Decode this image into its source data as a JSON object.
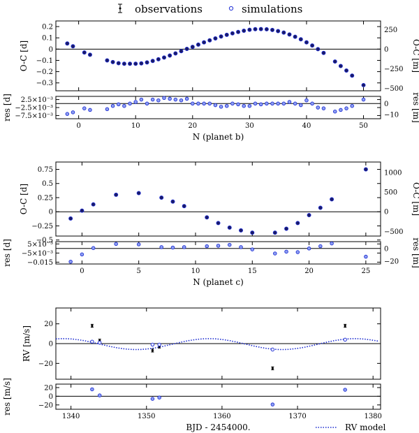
{
  "legend": {
    "observations": "observations",
    "simulations": "simulations",
    "rv_model": "RV model"
  },
  "colors": {
    "observations": "#000000",
    "simulations": "#1f2fd6",
    "sim_fill": "#8fa0f0",
    "model": "#1a2ad0"
  },
  "chart_data": [
    {
      "id": "b_oc",
      "type": "scatter",
      "ylabel": "O-C [d]",
      "ylabel_right": "O-C [m]",
      "ylim": [
        -0.37,
        0.25
      ],
      "yticks": [
        0.2,
        0.1,
        0,
        -0.1,
        -0.2,
        -0.3
      ],
      "ytick_labels": [
        "0.2",
        "0.1",
        "0",
        "−0.1",
        "−0.2",
        "−0.3"
      ],
      "yticks_right": [
        250,
        0,
        -250,
        -500
      ],
      "ytick_labels_right": [
        "250",
        "0",
        "−250",
        "−500"
      ],
      "right_scale_per_unit": 1440,
      "zero_line": true,
      "x": [
        -2,
        -1,
        1,
        2,
        5,
        6,
        7,
        8,
        9,
        10,
        11,
        12,
        13,
        14,
        15,
        16,
        17,
        18,
        19,
        20,
        21,
        22,
        23,
        24,
        25,
        26,
        27,
        28,
        29,
        30,
        31,
        32,
        33,
        34,
        35,
        36,
        37,
        38,
        39,
        40,
        41,
        42,
        43,
        45,
        46,
        47,
        48,
        50
      ],
      "y": [
        0.05,
        0.025,
        -0.03,
        -0.05,
        -0.1,
        -0.115,
        -0.125,
        -0.13,
        -0.13,
        -0.13,
        -0.127,
        -0.118,
        -0.105,
        -0.09,
        -0.075,
        -0.057,
        -0.038,
        -0.018,
        0.002,
        0.02,
        0.04,
        0.06,
        0.078,
        0.095,
        0.112,
        0.127,
        0.14,
        0.152,
        0.163,
        0.172,
        0.177,
        0.178,
        0.176,
        0.17,
        0.16,
        0.147,
        0.13,
        0.11,
        0.087,
        0.06,
        0.032,
        0.0,
        -0.034,
        -0.11,
        -0.15,
        -0.19,
        -0.235,
        -0.32
      ]
    },
    {
      "id": "b_res",
      "type": "scatter",
      "xlabel": "N (planet b)",
      "ylabel": "res [d]",
      "ylabel_right": "res [m]",
      "ylim": [
        -0.0095,
        0.0045
      ],
      "yticks": [
        0.0025,
        -0.0025,
        -0.0075
      ],
      "ytick_labels": [
        "2.5×10⁻³",
        "−2.5×10⁻³",
        "−7.5×10⁻³"
      ],
      "yticks_right": [
        0,
        -10
      ],
      "ytick_labels_right": [
        "0",
        "−10"
      ],
      "right_scale_per_unit": 1440,
      "zero_line": true,
      "xlim": [
        -4,
        53
      ],
      "xticks": [
        0,
        10,
        20,
        30,
        40,
        50
      ],
      "xtick_labels": [
        "0",
        "10",
        "20",
        "30",
        "40",
        "50"
      ],
      "x": [
        -2,
        -1,
        1,
        2,
        5,
        6,
        7,
        8,
        9,
        10,
        11,
        12,
        13,
        14,
        15,
        16,
        17,
        18,
        19,
        20,
        21,
        22,
        23,
        24,
        25,
        26,
        27,
        28,
        29,
        30,
        31,
        32,
        33,
        34,
        35,
        36,
        37,
        38,
        39,
        40,
        41,
        42,
        43,
        45,
        46,
        47,
        48,
        50
      ],
      "y": [
        -0.0065,
        -0.0055,
        -0.003,
        -0.004,
        -0.0035,
        -0.0015,
        -0.0005,
        -0.0015,
        0.0,
        0.001,
        0.0025,
        0.0,
        0.0025,
        0.002,
        0.0035,
        0.003,
        0.0025,
        0.002,
        0.003,
        0.0,
        0.0,
        0.0,
        0.0,
        -0.001,
        -0.002,
        -0.0015,
        0.0,
        -0.0005,
        -0.0015,
        -0.0015,
        0.0,
        -0.0005,
        0.0,
        0.0,
        0.0,
        0.0,
        0.001,
        0.0,
        -0.001,
        0.002,
        0.0,
        -0.0025,
        -0.003,
        -0.005,
        -0.004,
        -0.003,
        -0.0015,
        0.0025
      ]
    },
    {
      "id": "c_oc",
      "type": "scatter",
      "ylabel": "O-C [d]",
      "ylabel_right": "O-C [m]",
      "ylim": [
        -0.43,
        0.88
      ],
      "yticks": [
        0.75,
        0.5,
        0.25,
        0,
        -0.25,
        -0.5
      ],
      "ytick_labels": [
        "0.75",
        "0.5",
        "0.25",
        "0",
        "−0.25",
        "−0.5"
      ],
      "yticks_right": [
        1000,
        500,
        0,
        -500
      ],
      "ytick_labels_right": [
        "1000",
        "500",
        "0",
        "−500"
      ],
      "right_scale_per_unit": 1440,
      "zero_line": true,
      "x": [
        -1,
        0,
        1,
        3,
        5,
        7,
        8,
        9,
        11,
        12,
        13,
        14,
        15,
        17,
        18,
        19,
        20,
        21,
        22,
        25
      ],
      "y": [
        -0.12,
        0.02,
        0.13,
        0.3,
        0.33,
        0.25,
        0.18,
        0.1,
        -0.1,
        -0.2,
        -0.28,
        -0.33,
        -0.37,
        -0.37,
        -0.3,
        -0.2,
        -0.06,
        0.07,
        0.22,
        0.75
      ]
    },
    {
      "id": "c_res",
      "type": "scatter",
      "xlabel": "N (planet c)",
      "ylabel": "res [d]",
      "ylabel_right": "res [m]",
      "ylim": [
        -0.017,
        0.0075
      ],
      "yticks": [
        0.005,
        -0.005,
        -0.015
      ],
      "ytick_labels": [
        "5×10⁻³",
        "−5×10⁻³",
        "−0.015"
      ],
      "yticks_right": [
        0,
        -20
      ],
      "ytick_labels_right": [
        "0",
        "−20"
      ],
      "right_scale_per_unit": 1440,
      "zero_line": true,
      "xlim": [
        -2.3,
        26.3
      ],
      "xticks": [
        0,
        5,
        10,
        15,
        20,
        25
      ],
      "xtick_labels": [
        "0",
        "5",
        "10",
        "15",
        "20",
        "25"
      ],
      "x": [
        -1,
        0,
        1,
        3,
        5,
        7,
        8,
        9,
        11,
        12,
        13,
        14,
        15,
        17,
        18,
        19,
        20,
        21,
        22,
        25
      ],
      "y": [
        -0.0145,
        -0.0065,
        0.0005,
        0.005,
        0.0045,
        0.0015,
        0.001,
        0.0015,
        0.0025,
        0.003,
        0.004,
        0.0015,
        -0.001,
        -0.0055,
        -0.0035,
        -0.004,
        0.0,
        0.0025,
        0.0055,
        -0.009
      ]
    },
    {
      "id": "rv",
      "type": "scatter+line",
      "ylabel": "RV [m/s]",
      "ylim": [
        -36,
        36
      ],
      "yticks": [
        20,
        0,
        -20
      ],
      "ytick_labels": [
        "20",
        "0",
        "−20"
      ],
      "zero_line": true,
      "observations": {
        "x": [
          1342.8,
          1343.8,
          1350.8,
          1351.7,
          1366.7,
          1376.3
        ],
        "y": [
          18,
          3,
          -7,
          -3,
          -25,
          18
        ],
        "err": [
          1.5,
          1.5,
          1.5,
          1.5,
          1.5,
          1.5
        ]
      },
      "simulations": {
        "x": [
          1342.8,
          1343.8,
          1350.8,
          1351.7,
          1366.7,
          1376.3
        ],
        "y": [
          2,
          1,
          -1,
          -1,
          -6,
          4
        ]
      },
      "model": {
        "x_start": 1338,
        "x_end": 1381,
        "note": "dotted sinusoid"
      }
    },
    {
      "id": "rv_res",
      "type": "scatter",
      "xlabel": "BJD - 2454000.",
      "ylabel": "res [m/s]",
      "ylim": [
        -30,
        28
      ],
      "yticks": [
        20,
        0,
        -20
      ],
      "ytick_labels": [
        "20",
        "0",
        "−20"
      ],
      "zero_line": true,
      "xlim": [
        1338,
        1381
      ],
      "xticks": [
        1340,
        1350,
        1360,
        1370,
        1380
      ],
      "xtick_labels": [
        "1340",
        "1350",
        "1360",
        "1370",
        "1380"
      ],
      "x": [
        1342.8,
        1343.8,
        1350.8,
        1351.7,
        1366.7,
        1376.3
      ],
      "y": [
        16,
        2,
        -6,
        -3,
        -19,
        15
      ]
    }
  ]
}
